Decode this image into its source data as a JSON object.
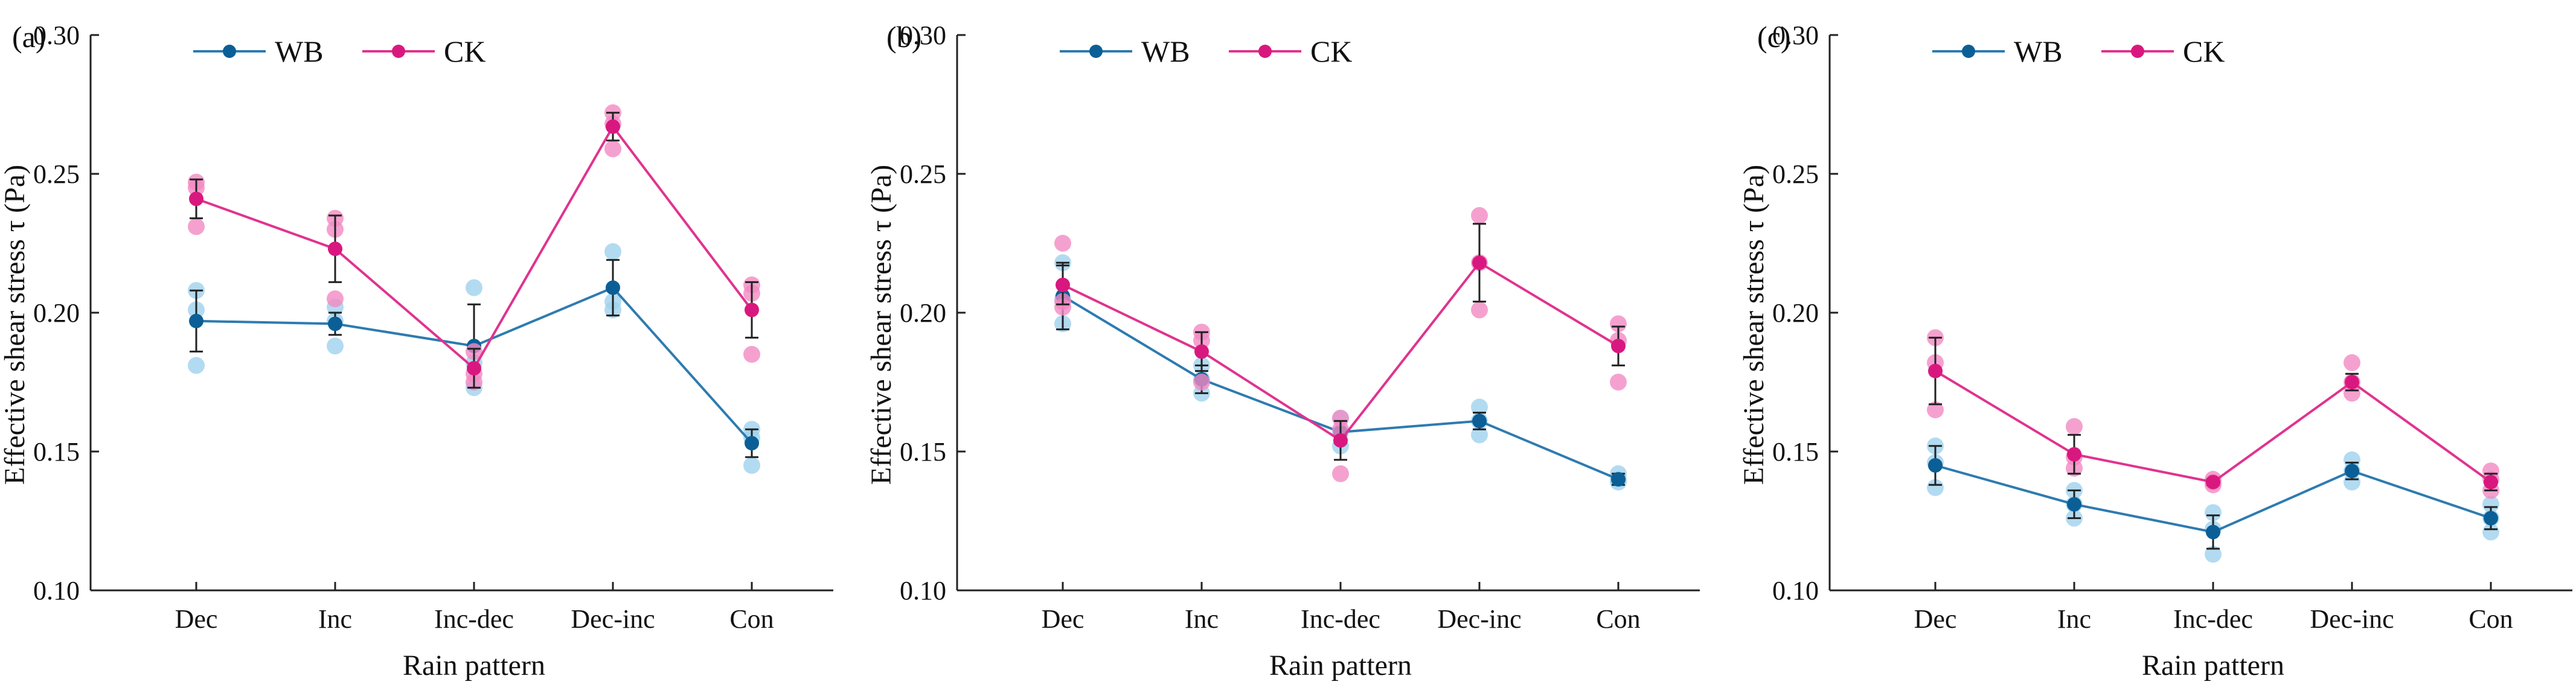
{
  "colors": {
    "wb_line": "#2e7bb0",
    "wb_marker": "#0b5f96",
    "wb_rep": "#9fd2ee",
    "ck_line": "#e0338f",
    "ck_marker": "#d9187f",
    "ck_rep": "#f28ac3",
    "axis": "#222222",
    "errorbar": "#222222"
  },
  "chart_data": [
    {
      "type": "line",
      "panel": "(a)",
      "xlabel": "Rain pattern",
      "ylabel": "Effective shear stress τ (Pa)",
      "categories": [
        "Dec",
        "Inc",
        "Inc-dec",
        "Dec-inc",
        "Con"
      ],
      "ylim": [
        0.1,
        0.3
      ],
      "yticks": [
        "0.10",
        "0.15",
        "0.20",
        "0.25",
        "0.30"
      ],
      "legend": [
        "WB",
        "CK"
      ],
      "series": [
        {
          "name": "WB",
          "values": [
            0.197,
            0.196,
            0.188,
            0.209,
            0.153
          ],
          "errors": [
            0.011,
            0.004,
            0.015,
            0.01,
            0.005
          ],
          "replicates": [
            [
              0.181,
              0.201,
              0.208
            ],
            [
              0.188,
              0.197,
              0.202
            ],
            [
              0.173,
              0.182,
              0.209
            ],
            [
              0.201,
              0.204,
              0.222
            ],
            [
              0.145,
              0.155,
              0.158
            ]
          ]
        },
        {
          "name": "CK",
          "values": [
            0.241,
            0.223,
            0.18,
            0.267,
            0.201
          ],
          "errors": [
            0.007,
            0.012,
            0.007,
            0.005,
            0.01
          ],
          "replicates": [
            [
              0.231,
              0.245,
              0.247
            ],
            [
              0.205,
              0.23,
              0.234
            ],
            [
              0.175,
              0.178,
              0.186
            ],
            [
              0.259,
              0.268,
              0.272
            ],
            [
              0.185,
              0.207,
              0.21
            ]
          ]
        }
      ]
    },
    {
      "type": "line",
      "panel": "(b)",
      "xlabel": "Rain pattern",
      "ylabel": "Effective shear stress τ (Pa)",
      "categories": [
        "Dec",
        "Inc",
        "Inc-dec",
        "Dec-inc",
        "Con"
      ],
      "ylim": [
        0.1,
        0.3
      ],
      "yticks": [
        "0.10",
        "0.15",
        "0.20",
        "0.25",
        "0.30"
      ],
      "legend": [
        "WB",
        "CK"
      ],
      "series": [
        {
          "name": "WB",
          "values": [
            0.206,
            0.176,
            0.157,
            0.161,
            0.14
          ],
          "errors": [
            0.012,
            0.005,
            0.004,
            0.003,
            0.002
          ],
          "replicates": [
            [
              0.196,
              0.205,
              0.218
            ],
            [
              0.171,
              0.176,
              0.181
            ],
            [
              0.152,
              0.157,
              0.162
            ],
            [
              0.156,
              0.161,
              0.166
            ],
            [
              0.139,
              0.14,
              0.142
            ]
          ]
        },
        {
          "name": "CK",
          "values": [
            0.21,
            0.186,
            0.154,
            0.218,
            0.188
          ],
          "errors": [
            0.007,
            0.007,
            0.007,
            0.014,
            0.007
          ],
          "replicates": [
            [
              0.202,
              0.204,
              0.225
            ],
            [
              0.175,
              0.19,
              0.193
            ],
            [
              0.142,
              0.158,
              0.162
            ],
            [
              0.201,
              0.218,
              0.235
            ],
            [
              0.175,
              0.19,
              0.196
            ]
          ]
        }
      ]
    },
    {
      "type": "line",
      "panel": "(c)",
      "xlabel": "Rain pattern",
      "ylabel": "Effective shear stress τ (Pa)",
      "categories": [
        "Dec",
        "Inc",
        "Inc-dec",
        "Dec-inc",
        "Con"
      ],
      "ylim": [
        0.1,
        0.3
      ],
      "yticks": [
        "0.10",
        "0.15",
        "0.20",
        "0.25",
        "0.30"
      ],
      "legend": [
        "WB",
        "CK"
      ],
      "series": [
        {
          "name": "WB",
          "values": [
            0.145,
            0.131,
            0.121,
            0.143,
            0.126
          ],
          "errors": [
            0.007,
            0.005,
            0.006,
            0.003,
            0.004
          ],
          "replicates": [
            [
              0.137,
              0.146,
              0.152
            ],
            [
              0.126,
              0.131,
              0.136
            ],
            [
              0.113,
              0.122,
              0.128
            ],
            [
              0.139,
              0.143,
              0.147
            ],
            [
              0.121,
              0.126,
              0.131
            ]
          ]
        },
        {
          "name": "CK",
          "values": [
            0.179,
            0.149,
            0.139,
            0.175,
            0.139
          ],
          "errors": [
            0.012,
            0.007,
            0.001,
            0.003,
            0.003
          ],
          "replicates": [
            [
              0.165,
              0.182,
              0.191
            ],
            [
              0.144,
              0.148,
              0.159
            ],
            [
              0.138,
              0.139,
              0.14
            ],
            [
              0.171,
              0.175,
              0.182
            ],
            [
              0.136,
              0.14,
              0.143
            ]
          ]
        }
      ]
    }
  ]
}
